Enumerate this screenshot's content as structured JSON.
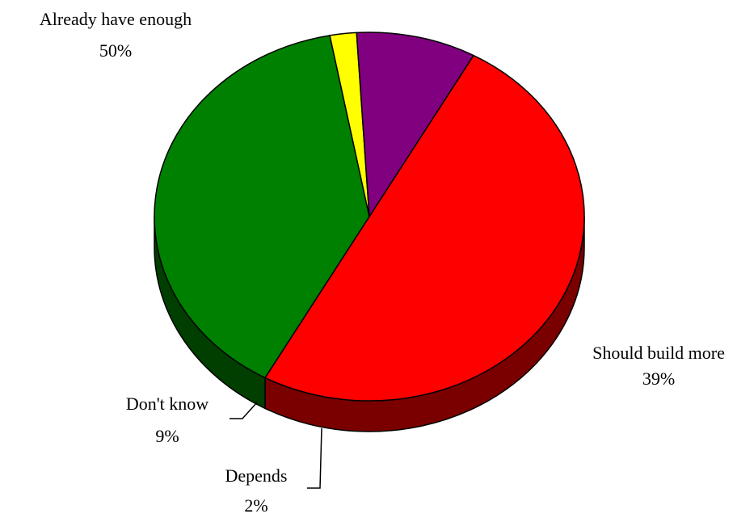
{
  "chart_data": {
    "type": "pie",
    "style": "3d",
    "slices": [
      {
        "label": "Already have enough",
        "value": 50,
        "value_label": "50%",
        "color": "#ff0000",
        "side_color": "#7a0000"
      },
      {
        "label": "Should build more",
        "value": 39,
        "value_label": "39%",
        "color": "#008000",
        "side_color": "#003f00"
      },
      {
        "label": "Depends",
        "value": 2,
        "value_label": "2%",
        "color": "#ffff00",
        "side_color": "#808000"
      },
      {
        "label": "Don't know",
        "value": 9,
        "value_label": "9%",
        "color": "#800080",
        "side_color": "#400040"
      }
    ]
  }
}
